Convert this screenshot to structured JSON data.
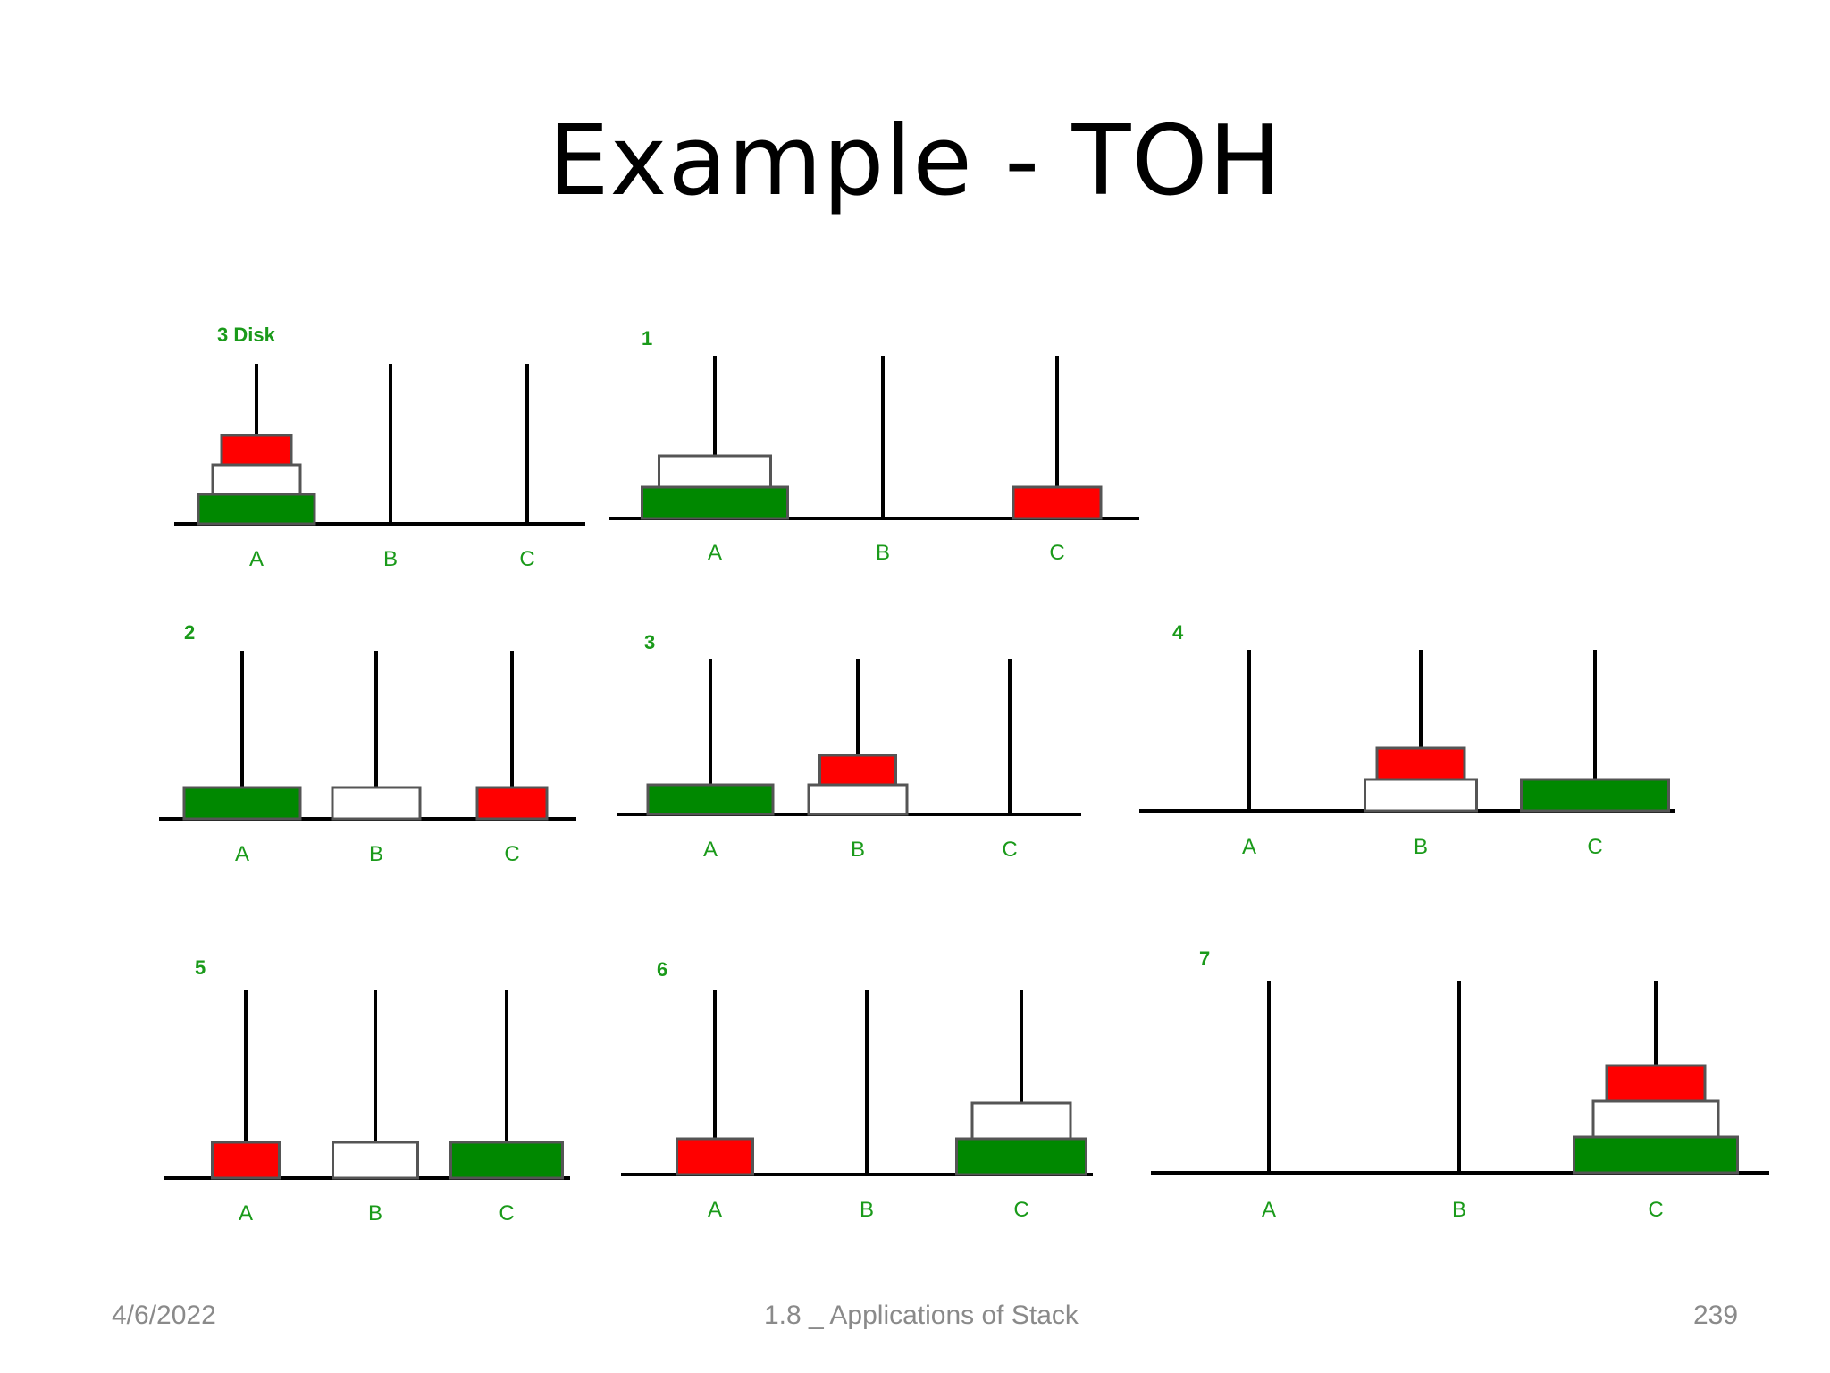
{
  "slide": {
    "title": "Example - TOH",
    "footer_date": "4/6/2022",
    "footer_center": "1.8 _ Applications of Stack",
    "footer_page": "239"
  },
  "colors": {
    "large": "#008800",
    "medium": "#ffffff",
    "small": "#ff0000",
    "label": "#1a9a1a"
  },
  "tower_labels": [
    "A",
    "B",
    "C"
  ],
  "steps": [
    {
      "label": "3 Disk",
      "towers": {
        "A": [
          "large",
          "medium",
          "small"
        ],
        "B": [],
        "C": []
      }
    },
    {
      "label": "1",
      "towers": {
        "A": [
          "large",
          "medium"
        ],
        "B": [],
        "C": [
          "small"
        ]
      }
    },
    {
      "label": "2",
      "towers": {
        "A": [
          "large"
        ],
        "B": [
          "medium"
        ],
        "C": [
          "small"
        ]
      }
    },
    {
      "label": "3",
      "towers": {
        "A": [
          "large"
        ],
        "B": [
          "medium",
          "small"
        ],
        "C": []
      }
    },
    {
      "label": "4",
      "towers": {
        "A": [],
        "B": [
          "medium",
          "small"
        ],
        "C": [
          "large"
        ]
      }
    },
    {
      "label": "5",
      "towers": {
        "A": [
          "small"
        ],
        "B": [
          "medium"
        ],
        "C": [
          "large"
        ]
      }
    },
    {
      "label": "6",
      "towers": {
        "A": [
          "small"
        ],
        "B": [],
        "C": [
          "large",
          "medium"
        ]
      }
    },
    {
      "label": "7",
      "towers": {
        "A": [],
        "B": [],
        "C": [
          "large",
          "medium",
          "small"
        ]
      }
    }
  ]
}
